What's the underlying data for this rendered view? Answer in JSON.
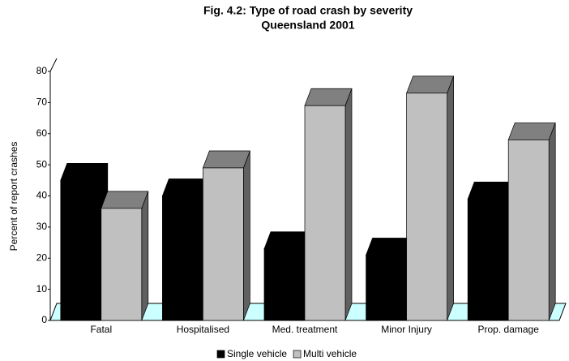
{
  "chart_data": {
    "type": "bar3d",
    "title": "Fig. 4.2: Type of road crash by severity",
    "subtitle": "Queensland 2001",
    "y_label": "Percent of report crashes",
    "categories": [
      "Fatal",
      "Hospitalised",
      "Med. treatment",
      "Minor Injury",
      "Prop. damage"
    ],
    "series": [
      {
        "name": "Single vehicle",
        "color": "#000000",
        "values": [
          45,
          40,
          23,
          21,
          39
        ]
      },
      {
        "name": "Multi vehicle",
        "color": "#c0c0c0",
        "values": [
          36,
          49,
          69,
          73,
          58
        ]
      }
    ],
    "ylim": [
      0,
      80
    ],
    "yticks": [
      0,
      10,
      20,
      30,
      40,
      50,
      60,
      70,
      80
    ],
    "legend": "bottom"
  }
}
